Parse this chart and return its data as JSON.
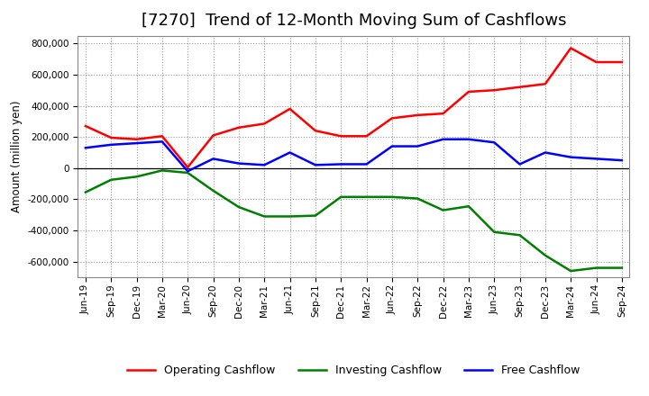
{
  "title": "[7270]  Trend of 12-Month Moving Sum of Cashflows",
  "ylabel": "Amount (million yen)",
  "ylim": [
    -700000,
    850000
  ],
  "yticks": [
    -600000,
    -400000,
    -200000,
    0,
    200000,
    400000,
    600000,
    800000
  ],
  "x_labels": [
    "Jun-19",
    "Sep-19",
    "Dec-19",
    "Mar-20",
    "Jun-20",
    "Sep-20",
    "Dec-20",
    "Mar-21",
    "Jun-21",
    "Sep-21",
    "Dec-21",
    "Mar-22",
    "Jun-22",
    "Sep-22",
    "Dec-22",
    "Mar-23",
    "Jun-23",
    "Sep-23",
    "Dec-23",
    "Mar-24",
    "Jun-24",
    "Sep-24"
  ],
  "operating": [
    270000,
    195000,
    185000,
    205000,
    5000,
    210000,
    260000,
    285000,
    380000,
    240000,
    205000,
    205000,
    320000,
    340000,
    350000,
    490000,
    500000,
    520000,
    540000,
    770000,
    680000,
    680000
  ],
  "investing": [
    -155000,
    -75000,
    -55000,
    -15000,
    -30000,
    -145000,
    -250000,
    -310000,
    -310000,
    -305000,
    -185000,
    -185000,
    -185000,
    -195000,
    -270000,
    -245000,
    -410000,
    -430000,
    -560000,
    -660000,
    -640000,
    -640000
  ],
  "free": [
    130000,
    150000,
    160000,
    170000,
    -20000,
    60000,
    30000,
    20000,
    100000,
    20000,
    25000,
    25000,
    140000,
    140000,
    185000,
    185000,
    165000,
    25000,
    100000,
    70000,
    60000,
    50000
  ],
  "operating_color": "#ff0000",
  "investing_color": "#008000",
  "free_color": "#0000ff",
  "bg_color": "#ffffff",
  "plot_bg_color": "#ffffff",
  "grid_color": "#999999",
  "line_width": 1.8,
  "title_fontsize": 13,
  "legend_fontsize": 9,
  "tick_fontsize": 7.5
}
